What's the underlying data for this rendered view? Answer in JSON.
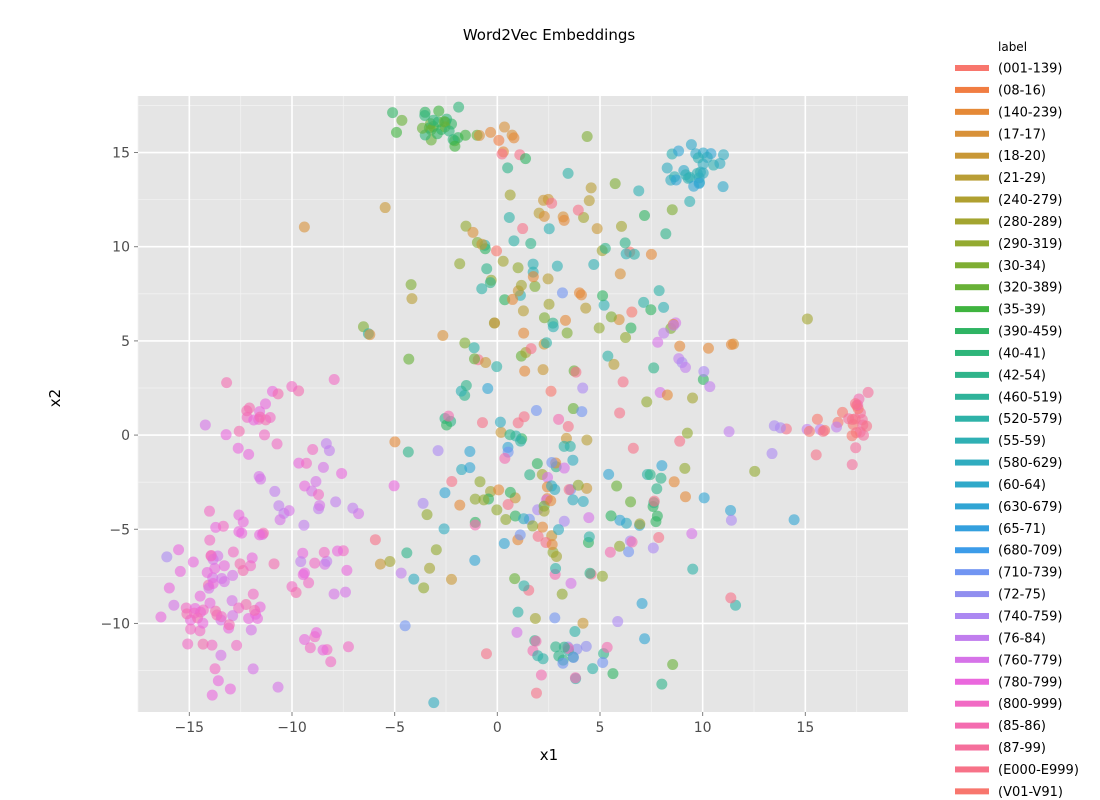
{
  "chart_data": {
    "type": "scatter",
    "title": "Word2Vec Embeddings",
    "xlabel": "x1",
    "ylabel": "x2",
    "xlim": [
      -17.5,
      20
    ],
    "ylim": [
      -14.7,
      18
    ],
    "xticks": [
      -15,
      -10,
      -5,
      0,
      5,
      10,
      15
    ],
    "yticks": [
      -10,
      -5,
      0,
      5,
      10,
      15
    ],
    "grid": true,
    "legend": {
      "title": "label",
      "placement": "right",
      "entries": [
        {
          "label": "(001-139)",
          "color": "#F8766D"
        },
        {
          "label": "(08-16)",
          "color": "#F17D42"
        },
        {
          "label": "(140-239)",
          "color": "#E58937"
        },
        {
          "label": "(17-17)",
          "color": "#D89139"
        },
        {
          "label": "(18-20)",
          "color": "#C99836"
        },
        {
          "label": "(21-29)",
          "color": "#B99E36"
        },
        {
          "label": "(240-279)",
          "color": "#B0A030"
        },
        {
          "label": "(280-289)",
          "color": "#A3A530"
        },
        {
          "label": "(290-319)",
          "color": "#93AA31"
        },
        {
          "label": "(30-34)",
          "color": "#7FAE33"
        },
        {
          "label": "(320-389)",
          "color": "#68B137"
        },
        {
          "label": "(35-39)",
          "color": "#3FB43F"
        },
        {
          "label": "(390-459)",
          "color": "#2FB463"
        },
        {
          "label": "(40-41)",
          "color": "#2EB57A"
        },
        {
          "label": "(42-54)",
          "color": "#2FB48A"
        },
        {
          "label": "(460-519)",
          "color": "#2FB39A"
        },
        {
          "label": "(520-579)",
          "color": "#2EB2A8"
        },
        {
          "label": "(55-59)",
          "color": "#2FB0B4"
        },
        {
          "label": "(580-629)",
          "color": "#30ACBF"
        },
        {
          "label": "(60-64)",
          "color": "#2FA9C9"
        },
        {
          "label": "(630-679)",
          "color": "#31A5D4"
        },
        {
          "label": "(65-71)",
          "color": "#34A0DE"
        },
        {
          "label": "(680-709)",
          "color": "#3C9CE9"
        },
        {
          "label": "(710-739)",
          "color": "#7195F2"
        },
        {
          "label": "(72-75)",
          "color": "#908EEF"
        },
        {
          "label": "(740-759)",
          "color": "#AC88F2"
        },
        {
          "label": "(76-84)",
          "color": "#C17EEE"
        },
        {
          "label": "(760-779)",
          "color": "#D673E8"
        },
        {
          "label": "(780-799)",
          "color": "#EA68DD"
        },
        {
          "label": "(800-999)",
          "color": "#F16AC4"
        },
        {
          "label": "(85-86)",
          "color": "#F46CB0"
        },
        {
          "label": "(87-99)",
          "color": "#F56F9C"
        },
        {
          "label": "(E000-E999)",
          "color": "#F77288"
        },
        {
          "label": "(V01-V91)",
          "color": "#F8766D"
        }
      ]
    },
    "clusters": [
      {
        "cx": -13.5,
        "cy": -8.5,
        "sx": 1.4,
        "sy": 2.2,
        "n": 80,
        "colors": [
          "#F16AC4",
          "#EA68DD",
          "#F46CB0",
          "#D673E8"
        ]
      },
      {
        "cx": -11.8,
        "cy": 1.0,
        "sx": 0.9,
        "sy": 0.7,
        "n": 18,
        "colors": [
          "#F16AC4",
          "#F46CB0",
          "#EA68DD"
        ]
      },
      {
        "cx": -9.0,
        "cy": -3.5,
        "sx": 1.5,
        "sy": 3.5,
        "n": 45,
        "colors": [
          "#F16AC4",
          "#EA68DD",
          "#D673E8",
          "#C17EEE"
        ]
      },
      {
        "cx": -8.6,
        "cy": -11.0,
        "sx": 0.6,
        "sy": 0.6,
        "n": 8,
        "colors": [
          "#F16AC4",
          "#EA68DD"
        ]
      },
      {
        "cx": -2.8,
        "cy": 16.3,
        "sx": 0.9,
        "sy": 0.4,
        "n": 30,
        "colors": [
          "#2FB463",
          "#3FB43F",
          "#68B137",
          "#2EB57A"
        ]
      },
      {
        "cx": 0.2,
        "cy": 16.0,
        "sx": 0.6,
        "sy": 0.4,
        "n": 7,
        "colors": [
          "#E58937",
          "#F17D42",
          "#D89139"
        ]
      },
      {
        "cx": 9.6,
        "cy": 14.2,
        "sx": 0.8,
        "sy": 0.8,
        "n": 30,
        "colors": [
          "#2FB0B4",
          "#30ACBF",
          "#2FA9C9",
          "#31A5D4"
        ]
      },
      {
        "cx": 17.4,
        "cy": 0.8,
        "sx": 0.3,
        "sy": 0.9,
        "n": 18,
        "colors": [
          "#F77288",
          "#F56F9C",
          "#F46CB0",
          "#F8766D"
        ]
      },
      {
        "cx": 14.5,
        "cy": 0.2,
        "sx": 1.5,
        "sy": 0.7,
        "n": 16,
        "colors": [
          "#AC88F2",
          "#C17EEE",
          "#F77288",
          "#F8766D"
        ]
      },
      {
        "cx": 3.2,
        "cy": -11.8,
        "sx": 1.1,
        "sy": 0.8,
        "n": 25,
        "colors": [
          "#2EB2A8",
          "#7195F2",
          "#F46CB0",
          "#2FB48A",
          "#908EEF"
        ]
      },
      {
        "cx": 2.0,
        "cy": 7.5,
        "sx": 4.0,
        "sy": 3.5,
        "n": 130,
        "colors": [
          "#E58937",
          "#D89139",
          "#C99836",
          "#B99E36",
          "#A3A530",
          "#93AA31",
          "#7FAE33",
          "#68B137",
          "#2FB463",
          "#2FB48A",
          "#2EB2A8",
          "#2FB0B4",
          "#F77288",
          "#F8766D"
        ]
      },
      {
        "cx": 2.0,
        "cy": -3.5,
        "sx": 4.5,
        "sy": 3.5,
        "n": 170,
        "colors": [
          "#E58937",
          "#C99836",
          "#A3A530",
          "#93AA31",
          "#68B137",
          "#2FB463",
          "#2FB48A",
          "#2EB2A8",
          "#30ACBF",
          "#31A5D4",
          "#7195F2",
          "#AC88F2",
          "#D673E8",
          "#F46CB0",
          "#F77288"
        ]
      },
      {
        "cx": 9.5,
        "cy": 4.0,
        "sx": 1.5,
        "sy": 1.5,
        "n": 15,
        "colors": [
          "#C17EEE",
          "#D673E8",
          "#AC88F2",
          "#E58937"
        ]
      }
    ]
  }
}
